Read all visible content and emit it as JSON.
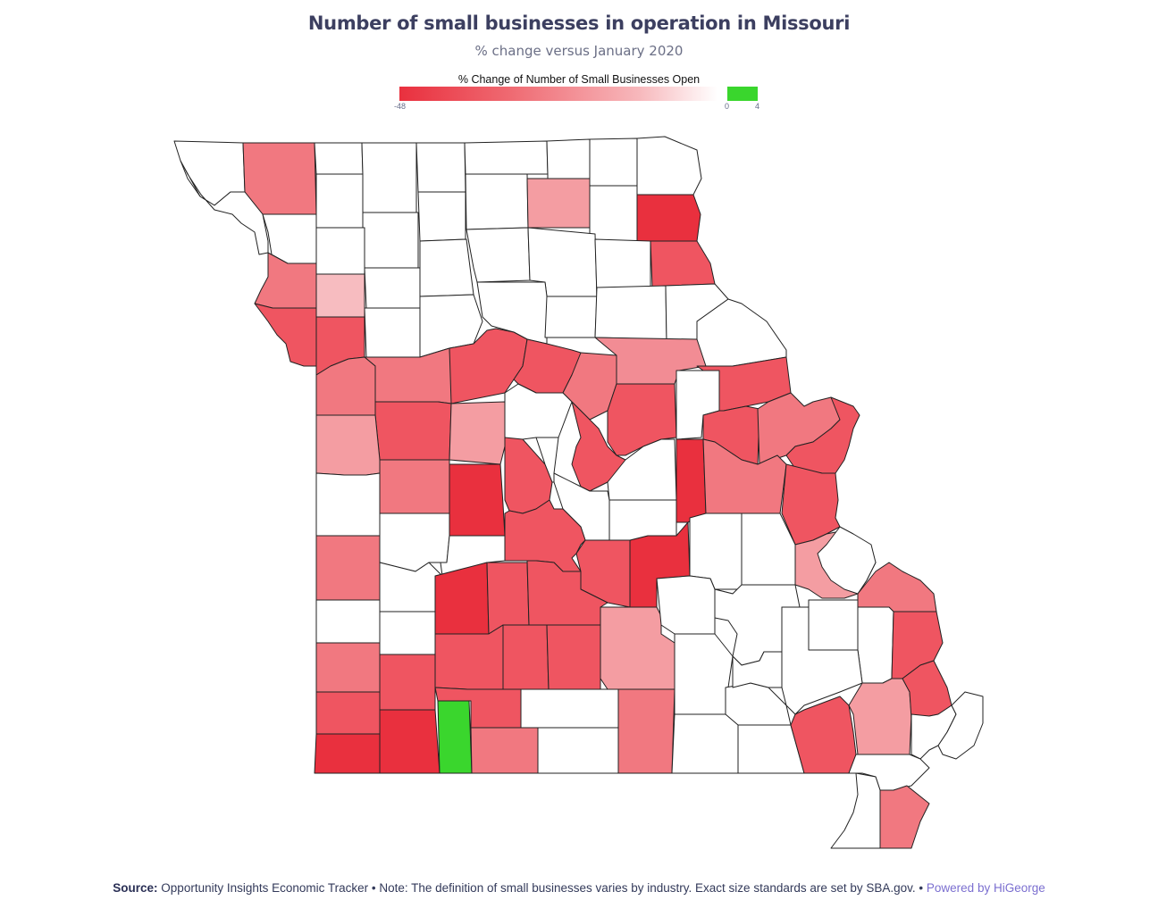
{
  "title": "Number of small businesses in operation in Missouri",
  "subtitle": "% change versus January 2020",
  "legend": {
    "title": "% Change of Number of Small Businesses Open",
    "ticks": {
      "min": "-48",
      "zero": "0",
      "max": "4"
    },
    "colors": {
      "neg_strong": "#e9303e",
      "neg_mid": "#ef6a72",
      "neg_light": "#f7b7bb",
      "neutral": "#ffffff",
      "positive": "#3ad62d"
    },
    "range": [
      -48,
      4
    ]
  },
  "map_fill_levels": {
    "description_levels": [
      "strong-decline",
      "decline",
      "moderate-decline",
      "light-decline",
      "no-data",
      "increase"
    ],
    "colors": {
      "strong-decline": "#e9303e",
      "decline": "#ef5561",
      "moderate-decline": "#f17880",
      "light-decline": "#f49da2",
      "no-data": "#ffffff",
      "increase": "#3ad62d"
    }
  },
  "footer": {
    "source_label": "Source:",
    "source_text": "Opportunity Insights Economic Tracker • Note: The definition of small businesses varies by industry. Exact size standards are set by SBA.gov. •",
    "powered_by": "Powered by HiGeorge"
  }
}
